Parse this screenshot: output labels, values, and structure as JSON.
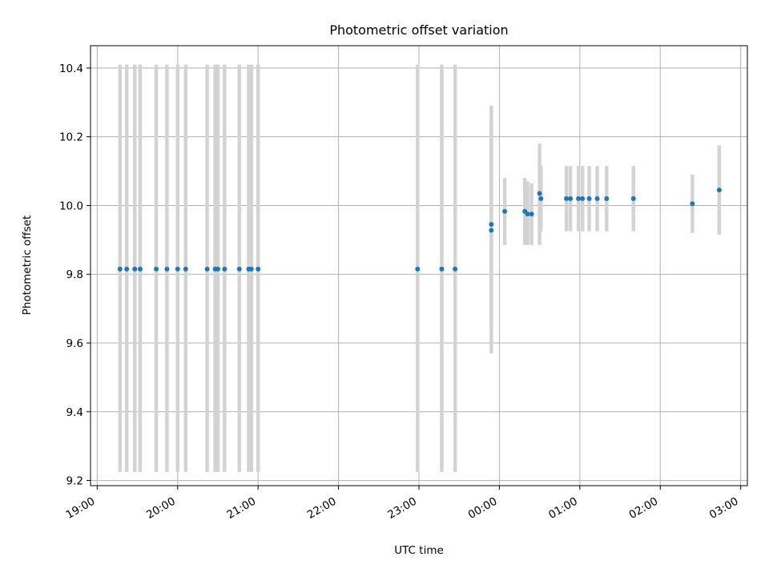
{
  "chart_data": {
    "type": "scatter",
    "title": "Photometric offset variation",
    "xlabel": "UTC time",
    "ylabel": "Photometric offset",
    "ylim": [
      9.185,
      10.465
    ],
    "xlim_minutes_from_19_00": [
      -5,
      485
    ],
    "x_ticks": [
      "19:00",
      "20:00",
      "21:00",
      "22:00",
      "23:00",
      "00:00",
      "01:00",
      "02:00",
      "03:00"
    ],
    "y_ticks": [
      "9.2",
      "9.4",
      "9.6",
      "9.8",
      "10.0",
      "10.2",
      "10.4"
    ],
    "grid": true,
    "colors": {
      "points": "#1f77b4",
      "error_bars": "#d3d3d3",
      "grid": "#b0b0b0"
    },
    "points": [
      {
        "t": "19:17",
        "y": 9.815,
        "ylo": 9.225,
        "yhi": 10.41
      },
      {
        "t": "19:22",
        "y": 9.815,
        "ylo": 9.225,
        "yhi": 10.41
      },
      {
        "t": "19:28",
        "y": 9.815,
        "ylo": 9.225,
        "yhi": 10.41
      },
      {
        "t": "19:32",
        "y": 9.815,
        "ylo": 9.225,
        "yhi": 10.41
      },
      {
        "t": "19:44",
        "y": 9.815,
        "ylo": 9.225,
        "yhi": 10.41
      },
      {
        "t": "19:52",
        "y": 9.815,
        "ylo": 9.225,
        "yhi": 10.41
      },
      {
        "t": "20:00",
        "y": 9.815,
        "ylo": 9.225,
        "yhi": 10.41
      },
      {
        "t": "20:06",
        "y": 9.815,
        "ylo": 9.225,
        "yhi": 10.41
      },
      {
        "t": "20:22",
        "y": 9.815,
        "ylo": 9.225,
        "yhi": 10.41
      },
      {
        "t": "20:28",
        "y": 9.815,
        "ylo": 9.225,
        "yhi": 10.41
      },
      {
        "t": "20:30",
        "y": 9.815,
        "ylo": 9.225,
        "yhi": 10.41
      },
      {
        "t": "20:35",
        "y": 9.815,
        "ylo": 9.225,
        "yhi": 10.41
      },
      {
        "t": "20:46",
        "y": 9.815,
        "ylo": 9.225,
        "yhi": 10.41
      },
      {
        "t": "20:53",
        "y": 9.815,
        "ylo": 9.225,
        "yhi": 10.41
      },
      {
        "t": "20:55",
        "y": 9.815,
        "ylo": 9.225,
        "yhi": 10.41
      },
      {
        "t": "21:00",
        "y": 9.815,
        "ylo": 9.225,
        "yhi": 10.41
      },
      {
        "t": "22:59",
        "y": 9.815,
        "ylo": 9.225,
        "yhi": 10.41
      },
      {
        "t": "23:17",
        "y": 9.815,
        "ylo": 9.225,
        "yhi": 10.41
      },
      {
        "t": "23:27",
        "y": 9.815,
        "ylo": 9.225,
        "yhi": 10.41
      },
      {
        "t": "23:54",
        "y": 9.945,
        "ylo": 9.57,
        "yhi": 10.29
      },
      {
        "t": "23:54",
        "y": 9.928,
        "ylo": 9.65,
        "yhi": 10.25
      },
      {
        "t": "00:04",
        "y": 9.983,
        "ylo": 9.885,
        "yhi": 10.08
      },
      {
        "t": "00:19",
        "y": 9.983,
        "ylo": 9.885,
        "yhi": 10.08
      },
      {
        "t": "00:21",
        "y": 9.975,
        "ylo": 9.885,
        "yhi": 10.07
      },
      {
        "t": "00:24",
        "y": 9.975,
        "ylo": 9.885,
        "yhi": 10.065
      },
      {
        "t": "00:30",
        "y": 10.035,
        "ylo": 9.885,
        "yhi": 10.18
      },
      {
        "t": "00:31",
        "y": 10.02,
        "ylo": 9.925,
        "yhi": 10.115
      },
      {
        "t": "00:50",
        "y": 10.02,
        "ylo": 9.925,
        "yhi": 10.115
      },
      {
        "t": "00:53",
        "y": 10.02,
        "ylo": 9.925,
        "yhi": 10.115
      },
      {
        "t": "00:59",
        "y": 10.02,
        "ylo": 9.925,
        "yhi": 10.115
      },
      {
        "t": "01:02",
        "y": 10.02,
        "ylo": 9.925,
        "yhi": 10.115
      },
      {
        "t": "01:07",
        "y": 10.02,
        "ylo": 9.925,
        "yhi": 10.115
      },
      {
        "t": "01:13",
        "y": 10.02,
        "ylo": 9.925,
        "yhi": 10.115
      },
      {
        "t": "01:20",
        "y": 10.02,
        "ylo": 9.925,
        "yhi": 10.115
      },
      {
        "t": "01:40",
        "y": 10.02,
        "ylo": 9.925,
        "yhi": 10.115
      },
      {
        "t": "02:24",
        "y": 10.005,
        "ylo": 9.92,
        "yhi": 10.09
      },
      {
        "t": "02:44",
        "y": 10.045,
        "ylo": 9.915,
        "yhi": 10.175
      }
    ]
  }
}
